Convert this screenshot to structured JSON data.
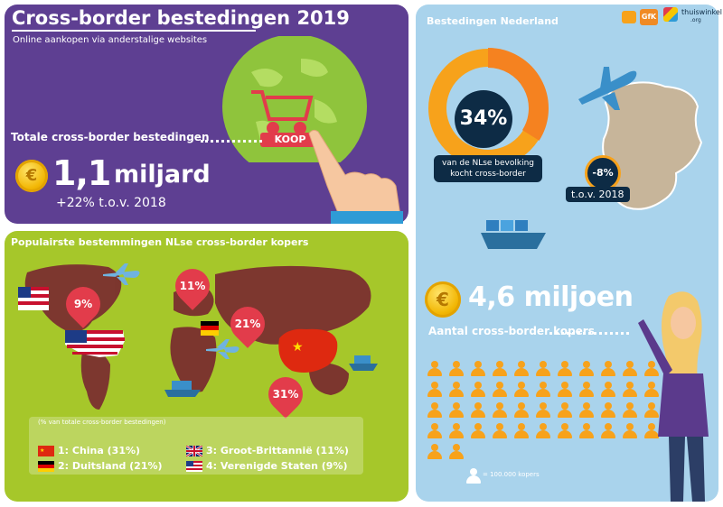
{
  "colors": {
    "purple": "#5e3f92",
    "green": "#a6c72a",
    "blue": "#a9d3ec",
    "red": "#e23c4b",
    "orange": "#f7a21b",
    "navy": "#0d2b45",
    "gold": "#f2b705"
  },
  "cross_border": {
    "title": "Cross-border bestedingen 2019",
    "subtitle": "Online aankopen via anderstalige websites",
    "total_label": "Totale cross-border bestedingen",
    "amount_value": "1,1",
    "amount_unit": "miljard",
    "growth": "+22% t.o.v. 2018",
    "koop_button": "KOOP"
  },
  "destinations": {
    "title": "Populairste bestemmingen NLse cross-border kopers",
    "legend_caption": "(% van totale cross-border bestedingen)",
    "items": [
      {
        "label": "1: China (31%)",
        "flag": "china-flag-icon"
      },
      {
        "label": "2: Duitsland (21%)",
        "flag": "germany-flag-icon"
      },
      {
        "label": "3: Groot-Brittannië (11%)",
        "flag": "uk-flag-icon"
      },
      {
        "label": "4: Verenigde Staten (9%)",
        "flag": "us-flag-icon"
      }
    ],
    "map_pins": [
      {
        "country": "Verenigde Staten",
        "pct": "9%"
      },
      {
        "country": "Groot-Brittannië",
        "pct": "11%"
      },
      {
        "country": "Duitsland",
        "pct": "21%"
      },
      {
        "country": "China",
        "pct": "31%"
      }
    ],
    "map_pin_values": [
      9,
      11,
      21,
      31
    ]
  },
  "netherlands": {
    "title": "Bestedingen Nederland",
    "pct": "34%",
    "pct_value": 34,
    "pct_caption_line1": "van de NLse bevolking",
    "pct_caption_line2": "kocht cross-border",
    "change": "-8%",
    "change_caption": "t.o.v. 2018",
    "buyers_value": "4,6 miljoen",
    "buyers_label": "Aantal cross-border kopers",
    "buyers_icon_count": 46,
    "key_label": "= 100.000 kopers"
  },
  "logos": {
    "gfk": "GfK",
    "thuiswinkel": "thuiswinkel",
    "thuiswinkel_suffix": ".org"
  }
}
